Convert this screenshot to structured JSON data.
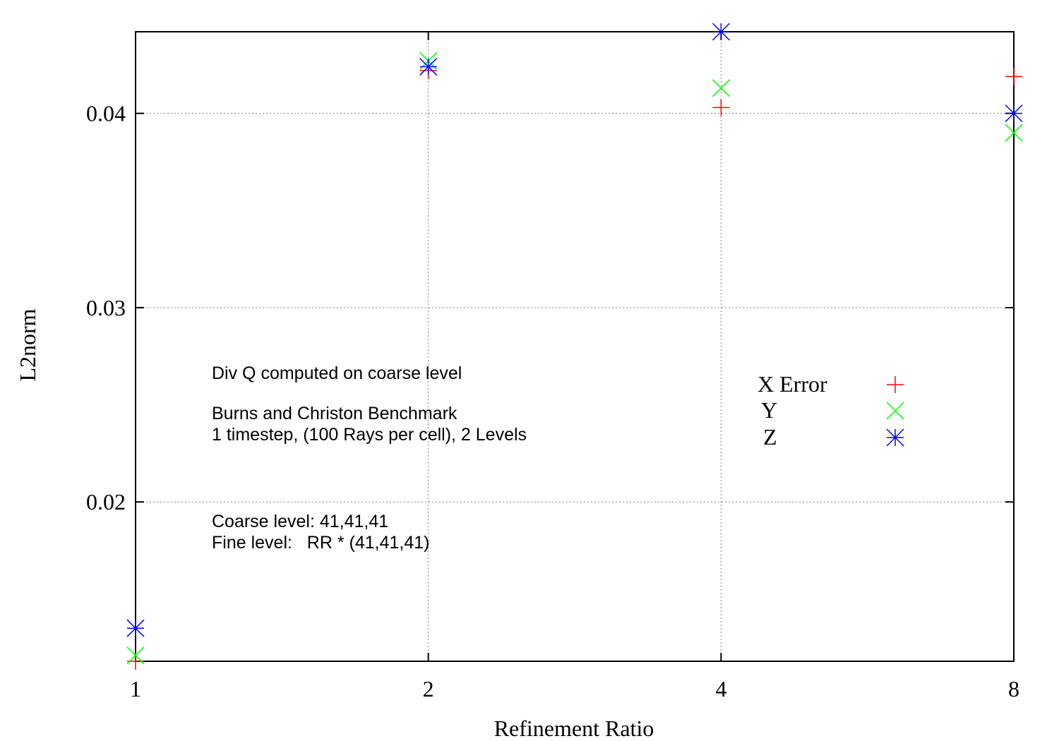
{
  "chart_data": {
    "type": "scatter",
    "xlabel": "Refinement Ratio",
    "ylabel": "L2norm",
    "x_scale": "log2",
    "xlim": [
      1,
      8
    ],
    "ylim": [
      0.0118,
      0.0442
    ],
    "x_ticks": [
      1,
      2,
      4,
      8
    ],
    "x_tick_labels": [
      "1",
      "2",
      "4",
      "8"
    ],
    "y_ticks": [
      0.02,
      0.03,
      0.04
    ],
    "y_tick_labels": [
      "0.02",
      "0.03",
      "0.04"
    ],
    "grid": true,
    "legend_position": "right-middle",
    "series": [
      {
        "name": "X Error",
        "marker": "plus",
        "color": "#ff0000",
        "x": [
          1,
          2,
          4,
          8
        ],
        "y": [
          0.0118,
          0.0422,
          0.0403,
          0.0419
        ]
      },
      {
        "name": "Y",
        "marker": "cross",
        "color": "#00ff00",
        "x": [
          1,
          2,
          4,
          8
        ],
        "y": [
          0.0121,
          0.0427,
          0.0413,
          0.039
        ]
      },
      {
        "name": "Z",
        "marker": "star",
        "color": "#0000ff",
        "x": [
          1,
          2,
          4,
          8
        ],
        "y": [
          0.0135,
          0.0424,
          0.0442,
          0.04
        ]
      }
    ],
    "annotations": [
      "Div Q computed on coarse level",
      "Burns and Christon Benchmark",
      "1 timestep, (100 Rays per cell), 2 Levels",
      "Coarse level: 41,41,41",
      "Fine level:   RR * (41,41,41)"
    ]
  }
}
